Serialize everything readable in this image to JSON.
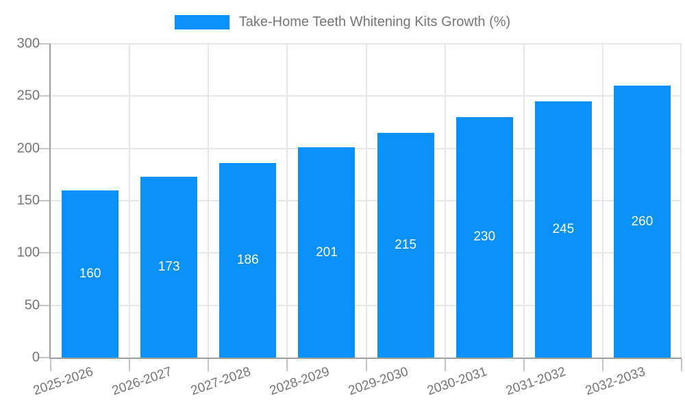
{
  "legend": {
    "label": "Take-Home Teeth Whitening Kits Growth (%)"
  },
  "chart_data": {
    "type": "bar",
    "title": "Take-Home Teeth Whitening Kits Growth (%)",
    "categories": [
      "2025-2026",
      "2026-2027",
      "2027-2028",
      "2028-2029",
      "2029-2030",
      "2030-2031",
      "2031-2032",
      "2032-2033"
    ],
    "values": [
      160,
      173,
      186,
      201,
      215,
      230,
      245,
      260
    ],
    "value_labels": [
      "160",
      "173",
      "186",
      "201",
      "215",
      "230",
      "245",
      "260"
    ],
    "xlabel": "",
    "ylabel": "",
    "ylim": [
      0,
      300
    ],
    "yticks": [
      0,
      50,
      100,
      150,
      200,
      250,
      300
    ],
    "grid": "both",
    "legend_position": "top-center",
    "colors": {
      "bar": "#0991f7",
      "value_label": "#ffffff",
      "axis_line": "#9e9e9e",
      "gridline": "#e7e7e7",
      "tick_mark": "#c4c4c4",
      "tick_label": "#757575",
      "legend_text": "#757575"
    }
  }
}
